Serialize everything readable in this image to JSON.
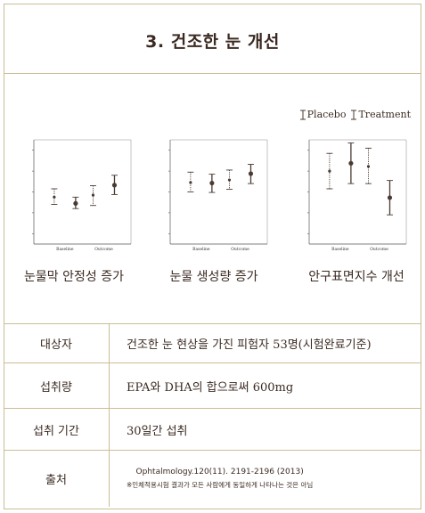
{
  "title": "3. 건조한 눈 개선",
  "legend": {
    "placebo": "Placebo",
    "treatment": "Treatment"
  },
  "colors": {
    "border": "#cbbd96",
    "marker": "#4a3b32",
    "text": "#3b2a22"
  },
  "chart_data": [
    {
      "type": "scatter",
      "caption": "눈물막 안정성 증가",
      "categories": [
        "Baseline",
        "Outcome"
      ],
      "series": [
        {
          "name": "Placebo",
          "values": [
            4.5,
            4.7
          ],
          "err_low": [
            3.8,
            3.7
          ],
          "err_high": [
            5.3,
            5.6
          ]
        },
        {
          "name": "Treatment",
          "values": [
            3.9,
            5.65
          ],
          "err_low": [
            3.4,
            4.75
          ],
          "err_high": [
            4.5,
            6.6
          ]
        }
      ]
    },
    {
      "type": "scatter",
      "caption": "눈물 생성량 증가",
      "categories": [
        "Baseline",
        "Outcome"
      ],
      "series": [
        {
          "name": "Placebo",
          "values": [
            5.9,
            6.15
          ],
          "err_low": [
            5.0,
            5.25
          ],
          "err_high": [
            6.9,
            7.1
          ]
        },
        {
          "name": "Treatment",
          "values": [
            5.85,
            6.75
          ],
          "err_low": [
            4.95,
            5.8
          ],
          "err_high": [
            6.7,
            7.65
          ]
        }
      ]
    },
    {
      "type": "scatter",
      "caption": "안구표면지수 개선",
      "categories": [
        "Baseline",
        "Outcome"
      ],
      "series": [
        {
          "name": "Placebo",
          "values": [
            7.0,
            7.45
          ],
          "err_low": [
            5.3,
            5.8
          ],
          "err_high": [
            8.7,
            9.2
          ]
        },
        {
          "name": "Treatment",
          "values": [
            7.75,
            4.45
          ],
          "err_low": [
            5.8,
            2.8
          ],
          "err_high": [
            9.7,
            6.1
          ]
        }
      ]
    }
  ],
  "info": {
    "rows": [
      {
        "label": "대상자",
        "value": "건조한 눈 현상을 가진 피험자 53명(시험완료기준)"
      },
      {
        "label": "섭취량",
        "value": "EPA와 DHA의 합으로써 600mg"
      },
      {
        "label": "섭취 기간",
        "value": "30일간 섭취"
      }
    ],
    "source": {
      "label": "출처",
      "reference": "Ophtalmology.120(11). 2191-2196 (2013)",
      "note": "※인체적용시험 결과가 모든 사람에게 동일하게 나타나는 것은 아님"
    }
  }
}
